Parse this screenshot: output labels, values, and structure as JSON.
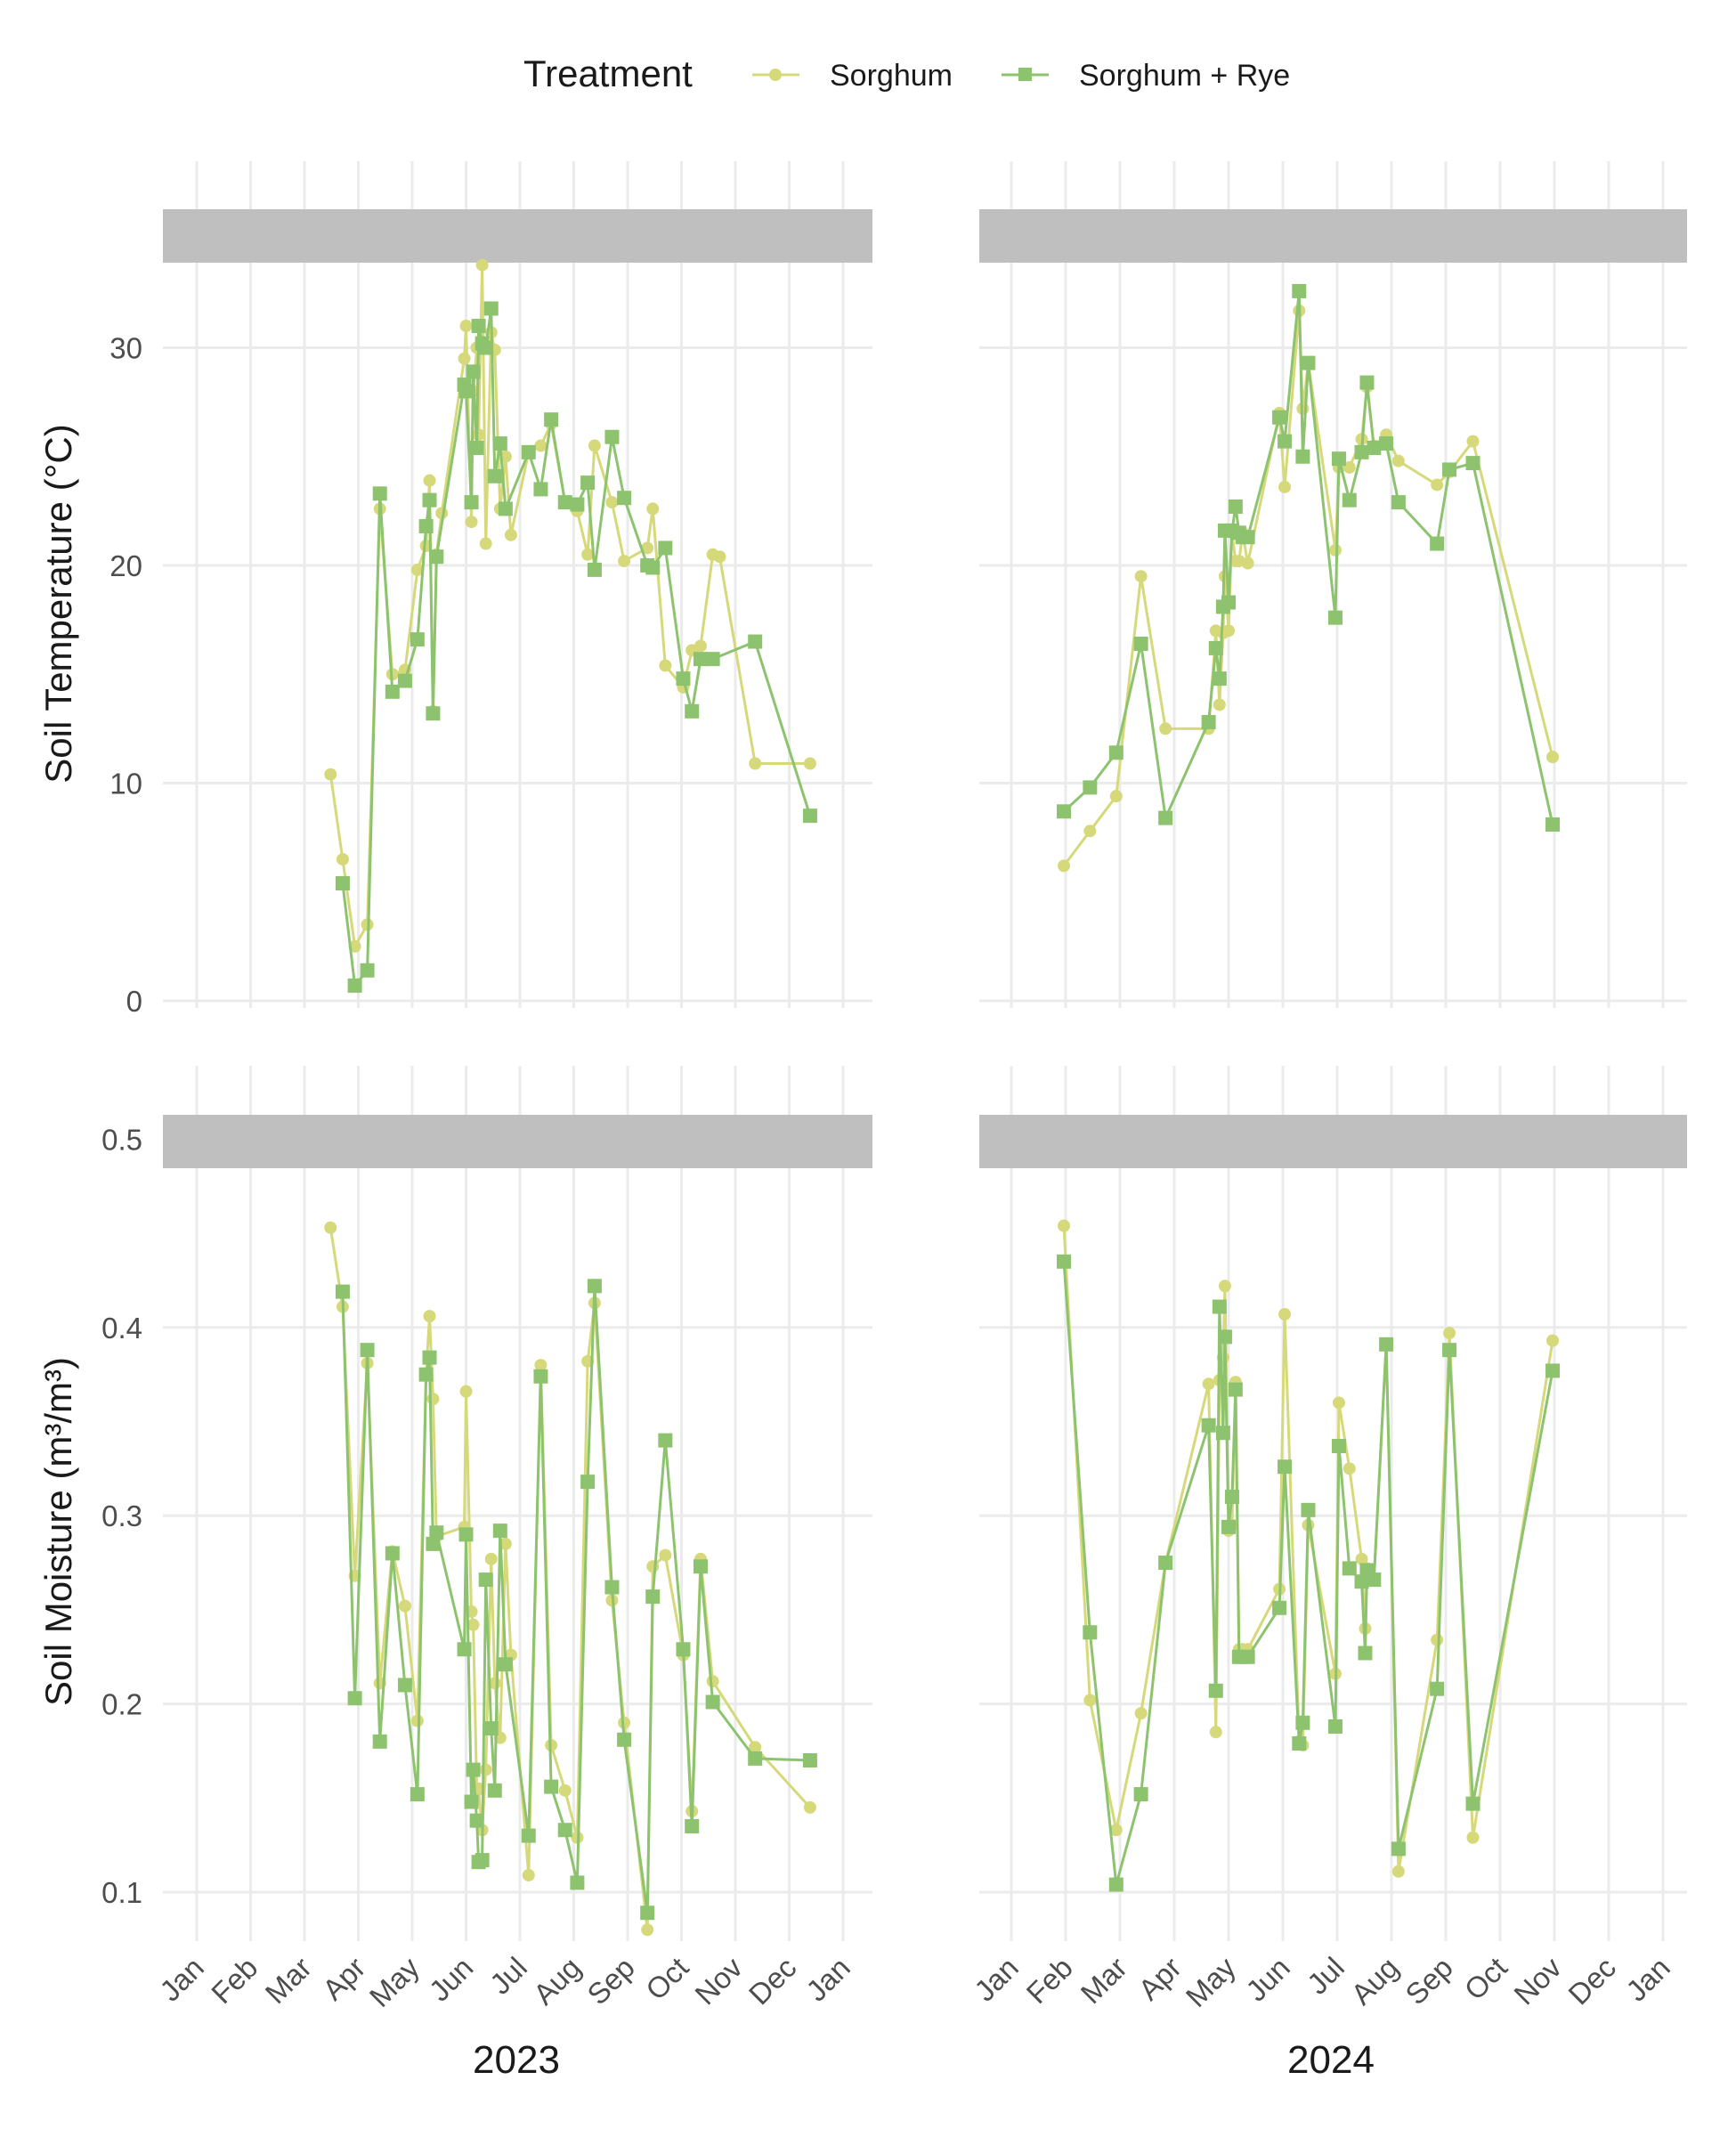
{
  "colors": {
    "sorghum": "#d6d97a",
    "sorghum_rye": "#8dc36e",
    "grid": "#ebebeb",
    "strip": "#bfbfbf",
    "text": "#1a1a1a",
    "axis_text": "#4d4d4d"
  },
  "legend": {
    "title": "Treatment",
    "items": [
      "Sorghum",
      "Sorghum + Rye"
    ]
  },
  "chart_data": {
    "type": "line",
    "legend": {
      "position": "top"
    },
    "grid": true,
    "x_tick_labels": [
      "Jan",
      "Feb",
      "Mar",
      "Apr",
      "May",
      "Jun",
      "Jul",
      "Aug",
      "Sep",
      "Oct",
      "Nov",
      "Dec",
      "Jan"
    ],
    "x_labels": {
      "2023": "2023",
      "2024": "2024"
    },
    "panels": [
      {
        "row": "temp",
        "year": "2023",
        "ylabel": "Soil Temperature (°C)",
        "ylim": [
          0,
          35.5
        ],
        "yticks": [
          0,
          10,
          20,
          30
        ],
        "series": [
          {
            "name": "Sorghum",
            "marker": "circle",
            "x": [
              "2023-03-16",
              "2023-03-23",
              "2023-03-30",
              "2023-04-06",
              "2023-04-13",
              "2023-04-20",
              "2023-04-27",
              "2023-05-04",
              "2023-05-09",
              "2023-05-11",
              "2023-05-13",
              "2023-05-15",
              "2023-05-18",
              "2023-05-31",
              "2023-06-01",
              "2023-06-04",
              "2023-06-05",
              "2023-06-07",
              "2023-06-08",
              "2023-06-10",
              "2023-06-12",
              "2023-06-15",
              "2023-06-17",
              "2023-06-20",
              "2023-06-23",
              "2023-06-26",
              "2023-07-06",
              "2023-07-13",
              "2023-07-19",
              "2023-07-27",
              "2023-08-03",
              "2023-08-09",
              "2023-08-13",
              "2023-08-23",
              "2023-08-30",
              "2023-09-12",
              "2023-09-15",
              "2023-09-22",
              "2023-10-02",
              "2023-10-07",
              "2023-10-12",
              "2023-10-19",
              "2023-10-23",
              "2023-11-12",
              "2023-12-13"
            ],
            "y": [
              10.4,
              6.5,
              2.5,
              3.5,
              22.6,
              15.0,
              15.2,
              19.8,
              20.9,
              23.9,
              13.3,
              20.5,
              22.4,
              29.5,
              31.0,
              22.0,
              28.0,
              30.0,
              26.0,
              33.8,
              21.0,
              30.7,
              29.9,
              22.6,
              25.0,
              21.4,
              25.2,
              25.5,
              26.5,
              22.9,
              22.5,
              20.5,
              25.5,
              22.9,
              20.2,
              20.8,
              22.6,
              15.4,
              14.4,
              16.1,
              16.3,
              20.5,
              20.4,
              10.9,
              10.9
            ],
            "y_note": "approx"
          },
          {
            "name": "Sorghum + Rye",
            "marker": "square",
            "x": [
              "2023-03-23",
              "2023-03-30",
              "2023-04-06",
              "2023-04-13",
              "2023-04-20",
              "2023-04-27",
              "2023-05-04",
              "2023-05-09",
              "2023-05-11",
              "2023-05-13",
              "2023-05-15",
              "2023-05-31",
              "2023-06-01",
              "2023-06-04",
              "2023-06-05",
              "2023-06-07",
              "2023-06-08",
              "2023-06-10",
              "2023-06-12",
              "2023-06-15",
              "2023-06-17",
              "2023-06-20",
              "2023-06-23",
              "2023-07-06",
              "2023-07-13",
              "2023-07-19",
              "2023-07-27",
              "2023-08-03",
              "2023-08-09",
              "2023-08-13",
              "2023-08-23",
              "2023-08-30",
              "2023-09-12",
              "2023-09-15",
              "2023-09-22",
              "2023-10-02",
              "2023-10-07",
              "2023-10-12",
              "2023-10-19",
              "2023-11-12",
              "2023-12-13"
            ],
            "y": [
              5.4,
              0.7,
              1.4,
              23.3,
              14.2,
              14.7,
              16.6,
              21.8,
              23.0,
              13.2,
              20.4,
              28.3,
              28.0,
              22.9,
              28.9,
              25.4,
              31.0,
              30.2,
              30.0,
              31.8,
              24.1,
              25.6,
              22.6,
              25.2,
              23.5,
              26.7,
              22.9,
              22.8,
              23.8,
              19.8,
              25.9,
              23.1,
              20.0,
              19.9,
              20.8,
              14.8,
              13.3,
              15.7,
              15.7,
              16.5,
              8.5
            ]
          }
        ]
      },
      {
        "row": "temp",
        "year": "2024",
        "ylabel": "",
        "ylim": [
          0,
          35.5
        ],
        "yticks": [
          0,
          10,
          20,
          30
        ],
        "series": [
          {
            "name": "Sorghum",
            "marker": "circle",
            "x": [
              "2024-01-31",
              "2024-02-14",
              "2024-02-28",
              "2024-03-13",
              "2024-03-27",
              "2024-04-20",
              "2024-04-24",
              "2024-04-26",
              "2024-04-28",
              "2024-04-29",
              "2024-05-01",
              "2024-05-03",
              "2024-05-05",
              "2024-05-07",
              "2024-05-09",
              "2024-05-12",
              "2024-05-30",
              "2024-06-02",
              "2024-06-10",
              "2024-06-12",
              "2024-06-15",
              "2024-06-30",
              "2024-07-02",
              "2024-07-08",
              "2024-07-15",
              "2024-07-18",
              "2024-07-22",
              "2024-07-29",
              "2024-08-05",
              "2024-08-27",
              "2024-09-03",
              "2024-09-16",
              "2024-10-31"
            ],
            "y": [
              6.2,
              7.8,
              9.4,
              19.5,
              12.5,
              12.5,
              17.0,
              13.6,
              16.9,
              19.5,
              17.0,
              21.5,
              20.2,
              20.2,
              21.5,
              20.1,
              27.0,
              23.6,
              31.7,
              27.2,
              29.3,
              20.7,
              24.5,
              24.5,
              25.8,
              28.2,
              25.5,
              26.0,
              24.8,
              23.7,
              24.3,
              25.7,
              11.2
            ]
          },
          {
            "name": "Sorghum + Rye",
            "marker": "square",
            "x": [
              "2024-01-31",
              "2024-02-14",
              "2024-02-28",
              "2024-03-13",
              "2024-03-27",
              "2024-04-20",
              "2024-04-24",
              "2024-04-26",
              "2024-04-28",
              "2024-04-29",
              "2024-05-01",
              "2024-05-03",
              "2024-05-05",
              "2024-05-07",
              "2024-05-09",
              "2024-05-12",
              "2024-05-30",
              "2024-06-02",
              "2024-06-10",
              "2024-06-12",
              "2024-06-15",
              "2024-06-30",
              "2024-07-02",
              "2024-07-08",
              "2024-07-15",
              "2024-07-18",
              "2024-07-22",
              "2024-07-29",
              "2024-08-05",
              "2024-08-27",
              "2024-09-03",
              "2024-09-16",
              "2024-10-31"
            ],
            "y": [
              8.7,
              9.8,
              11.4,
              16.4,
              8.4,
              12.8,
              16.2,
              14.8,
              18.1,
              21.6,
              18.3,
              21.6,
              22.7,
              21.5,
              21.3,
              21.3,
              26.8,
              25.7,
              32.6,
              25.0,
              29.3,
              17.6,
              24.9,
              23.0,
              25.2,
              28.4,
              25.4,
              25.6,
              22.9,
              21.0,
              24.4,
              24.7,
              8.1
            ]
          }
        ]
      },
      {
        "row": "moist",
        "year": "2023",
        "ylabel": "Soil Moisture (m³/m³)",
        "ylim": [
          0.075,
          0.52
        ],
        "yticks": [
          0.1,
          0.2,
          0.3,
          0.4,
          0.5
        ],
        "series": [
          {
            "name": "Sorghum",
            "marker": "circle",
            "x": [
              "2023-03-16",
              "2023-03-23",
              "2023-03-30",
              "2023-04-06",
              "2023-04-13",
              "2023-04-20",
              "2023-04-27",
              "2023-05-04",
              "2023-05-09",
              "2023-05-11",
              "2023-05-13",
              "2023-05-15",
              "2023-05-31",
              "2023-06-01",
              "2023-06-04",
              "2023-06-05",
              "2023-06-07",
              "2023-06-08",
              "2023-06-10",
              "2023-06-12",
              "2023-06-15",
              "2023-06-17",
              "2023-06-20",
              "2023-06-23",
              "2023-06-26",
              "2023-07-06",
              "2023-07-13",
              "2023-07-19",
              "2023-07-27",
              "2023-08-03",
              "2023-08-09",
              "2023-08-13",
              "2023-08-23",
              "2023-08-30",
              "2023-09-12",
              "2023-09-15",
              "2023-09-22",
              "2023-10-02",
              "2023-10-07",
              "2023-10-12",
              "2023-10-19",
              "2023-11-12",
              "2023-12-13"
            ],
            "y": [
              0.453,
              0.411,
              0.268,
              0.381,
              0.211,
              0.281,
              0.252,
              0.191,
              0.375,
              0.406,
              0.362,
              0.289,
              0.294,
              0.366,
              0.249,
              0.242,
              0.154,
              0.155,
              0.133,
              0.165,
              0.277,
              0.211,
              0.182,
              0.285,
              0.226,
              0.109,
              0.38,
              0.178,
              0.154,
              0.129,
              0.382,
              0.413,
              0.255,
              0.19,
              0.08,
              0.273,
              0.279,
              0.226,
              0.143,
              0.277,
              0.212,
              0.177,
              0.145
            ]
          },
          {
            "name": "Sorghum + Rye",
            "marker": "square",
            "x": [
              "2023-03-23",
              "2023-03-30",
              "2023-04-06",
              "2023-04-13",
              "2023-04-20",
              "2023-04-27",
              "2023-05-04",
              "2023-05-09",
              "2023-05-11",
              "2023-05-13",
              "2023-05-15",
              "2023-05-31",
              "2023-06-01",
              "2023-06-04",
              "2023-06-05",
              "2023-06-07",
              "2023-06-08",
              "2023-06-10",
              "2023-06-12",
              "2023-06-15",
              "2023-06-17",
              "2023-06-20",
              "2023-06-23",
              "2023-07-06",
              "2023-07-13",
              "2023-07-19",
              "2023-07-27",
              "2023-08-03",
              "2023-08-09",
              "2023-08-13",
              "2023-08-23",
              "2023-08-30",
              "2023-09-12",
              "2023-09-15",
              "2023-09-22",
              "2023-10-02",
              "2023-10-07",
              "2023-10-12",
              "2023-10-19",
              "2023-11-12",
              "2023-12-13"
            ],
            "y": [
              0.419,
              0.203,
              0.388,
              0.18,
              0.28,
              0.21,
              0.152,
              0.375,
              0.384,
              0.285,
              0.291,
              0.229,
              0.29,
              0.148,
              0.165,
              0.138,
              0.116,
              0.117,
              0.266,
              0.187,
              0.154,
              0.292,
              0.221,
              0.13,
              0.374,
              0.156,
              0.133,
              0.105,
              0.318,
              0.422,
              0.262,
              0.181,
              0.089,
              0.257,
              0.34,
              0.229,
              0.135,
              0.273,
              0.201,
              0.171,
              0.17
            ]
          }
        ]
      },
      {
        "row": "moist",
        "year": "2024",
        "ylabel": "",
        "ylim": [
          0.075,
          0.52
        ],
        "yticks": [
          0.1,
          0.2,
          0.3,
          0.4,
          0.5
        ],
        "series": [
          {
            "name": "Sorghum",
            "marker": "circle",
            "x": [
              "2024-01-31",
              "2024-02-14",
              "2024-02-28",
              "2024-03-13",
              "2024-03-27",
              "2024-04-20",
              "2024-04-24",
              "2024-04-26",
              "2024-04-28",
              "2024-04-29",
              "2024-05-01",
              "2024-05-03",
              "2024-05-05",
              "2024-05-07",
              "2024-05-09",
              "2024-05-12",
              "2024-05-30",
              "2024-06-02",
              "2024-06-10",
              "2024-06-12",
              "2024-06-15",
              "2024-06-30",
              "2024-07-02",
              "2024-07-08",
              "2024-07-15",
              "2024-07-17",
              "2024-07-18",
              "2024-07-22",
              "2024-07-29",
              "2024-08-05",
              "2024-08-27",
              "2024-09-03",
              "2024-09-16",
              "2024-10-31"
            ],
            "y": [
              0.454,
              0.202,
              0.133,
              0.195,
              0.275,
              0.37,
              0.185,
              0.372,
              0.384,
              0.422,
              0.292,
              0.295,
              0.371,
              0.229,
              0.229,
              0.229,
              0.261,
              0.407,
              0.18,
              0.178,
              0.295,
              0.216,
              0.36,
              0.325,
              0.277,
              0.24,
              0.272,
              0.266,
              0.391,
              0.111,
              0.234,
              0.397,
              0.129,
              0.393
            ]
          },
          {
            "name": "Sorghum + Rye",
            "marker": "square",
            "x": [
              "2024-01-31",
              "2024-02-14",
              "2024-02-28",
              "2024-03-13",
              "2024-03-27",
              "2024-04-20",
              "2024-04-24",
              "2024-04-26",
              "2024-04-28",
              "2024-04-29",
              "2024-05-01",
              "2024-05-03",
              "2024-05-05",
              "2024-05-07",
              "2024-05-09",
              "2024-05-12",
              "2024-05-30",
              "2024-06-02",
              "2024-06-10",
              "2024-06-12",
              "2024-06-15",
              "2024-06-30",
              "2024-07-02",
              "2024-07-08",
              "2024-07-15",
              "2024-07-17",
              "2024-07-18",
              "2024-07-22",
              "2024-07-29",
              "2024-08-05",
              "2024-08-27",
              "2024-09-03",
              "2024-09-16",
              "2024-10-31"
            ],
            "y": [
              0.435,
              0.238,
              0.104,
              0.152,
              0.275,
              0.348,
              0.207,
              0.411,
              0.344,
              0.395,
              0.294,
              0.31,
              0.367,
              0.225,
              0.225,
              0.225,
              0.251,
              0.326,
              0.179,
              0.19,
              0.303,
              0.188,
              0.337,
              0.272,
              0.265,
              0.227,
              0.271,
              0.266,
              0.391,
              0.123,
              0.208,
              0.388,
              0.147,
              0.377
            ]
          }
        ]
      }
    ]
  }
}
